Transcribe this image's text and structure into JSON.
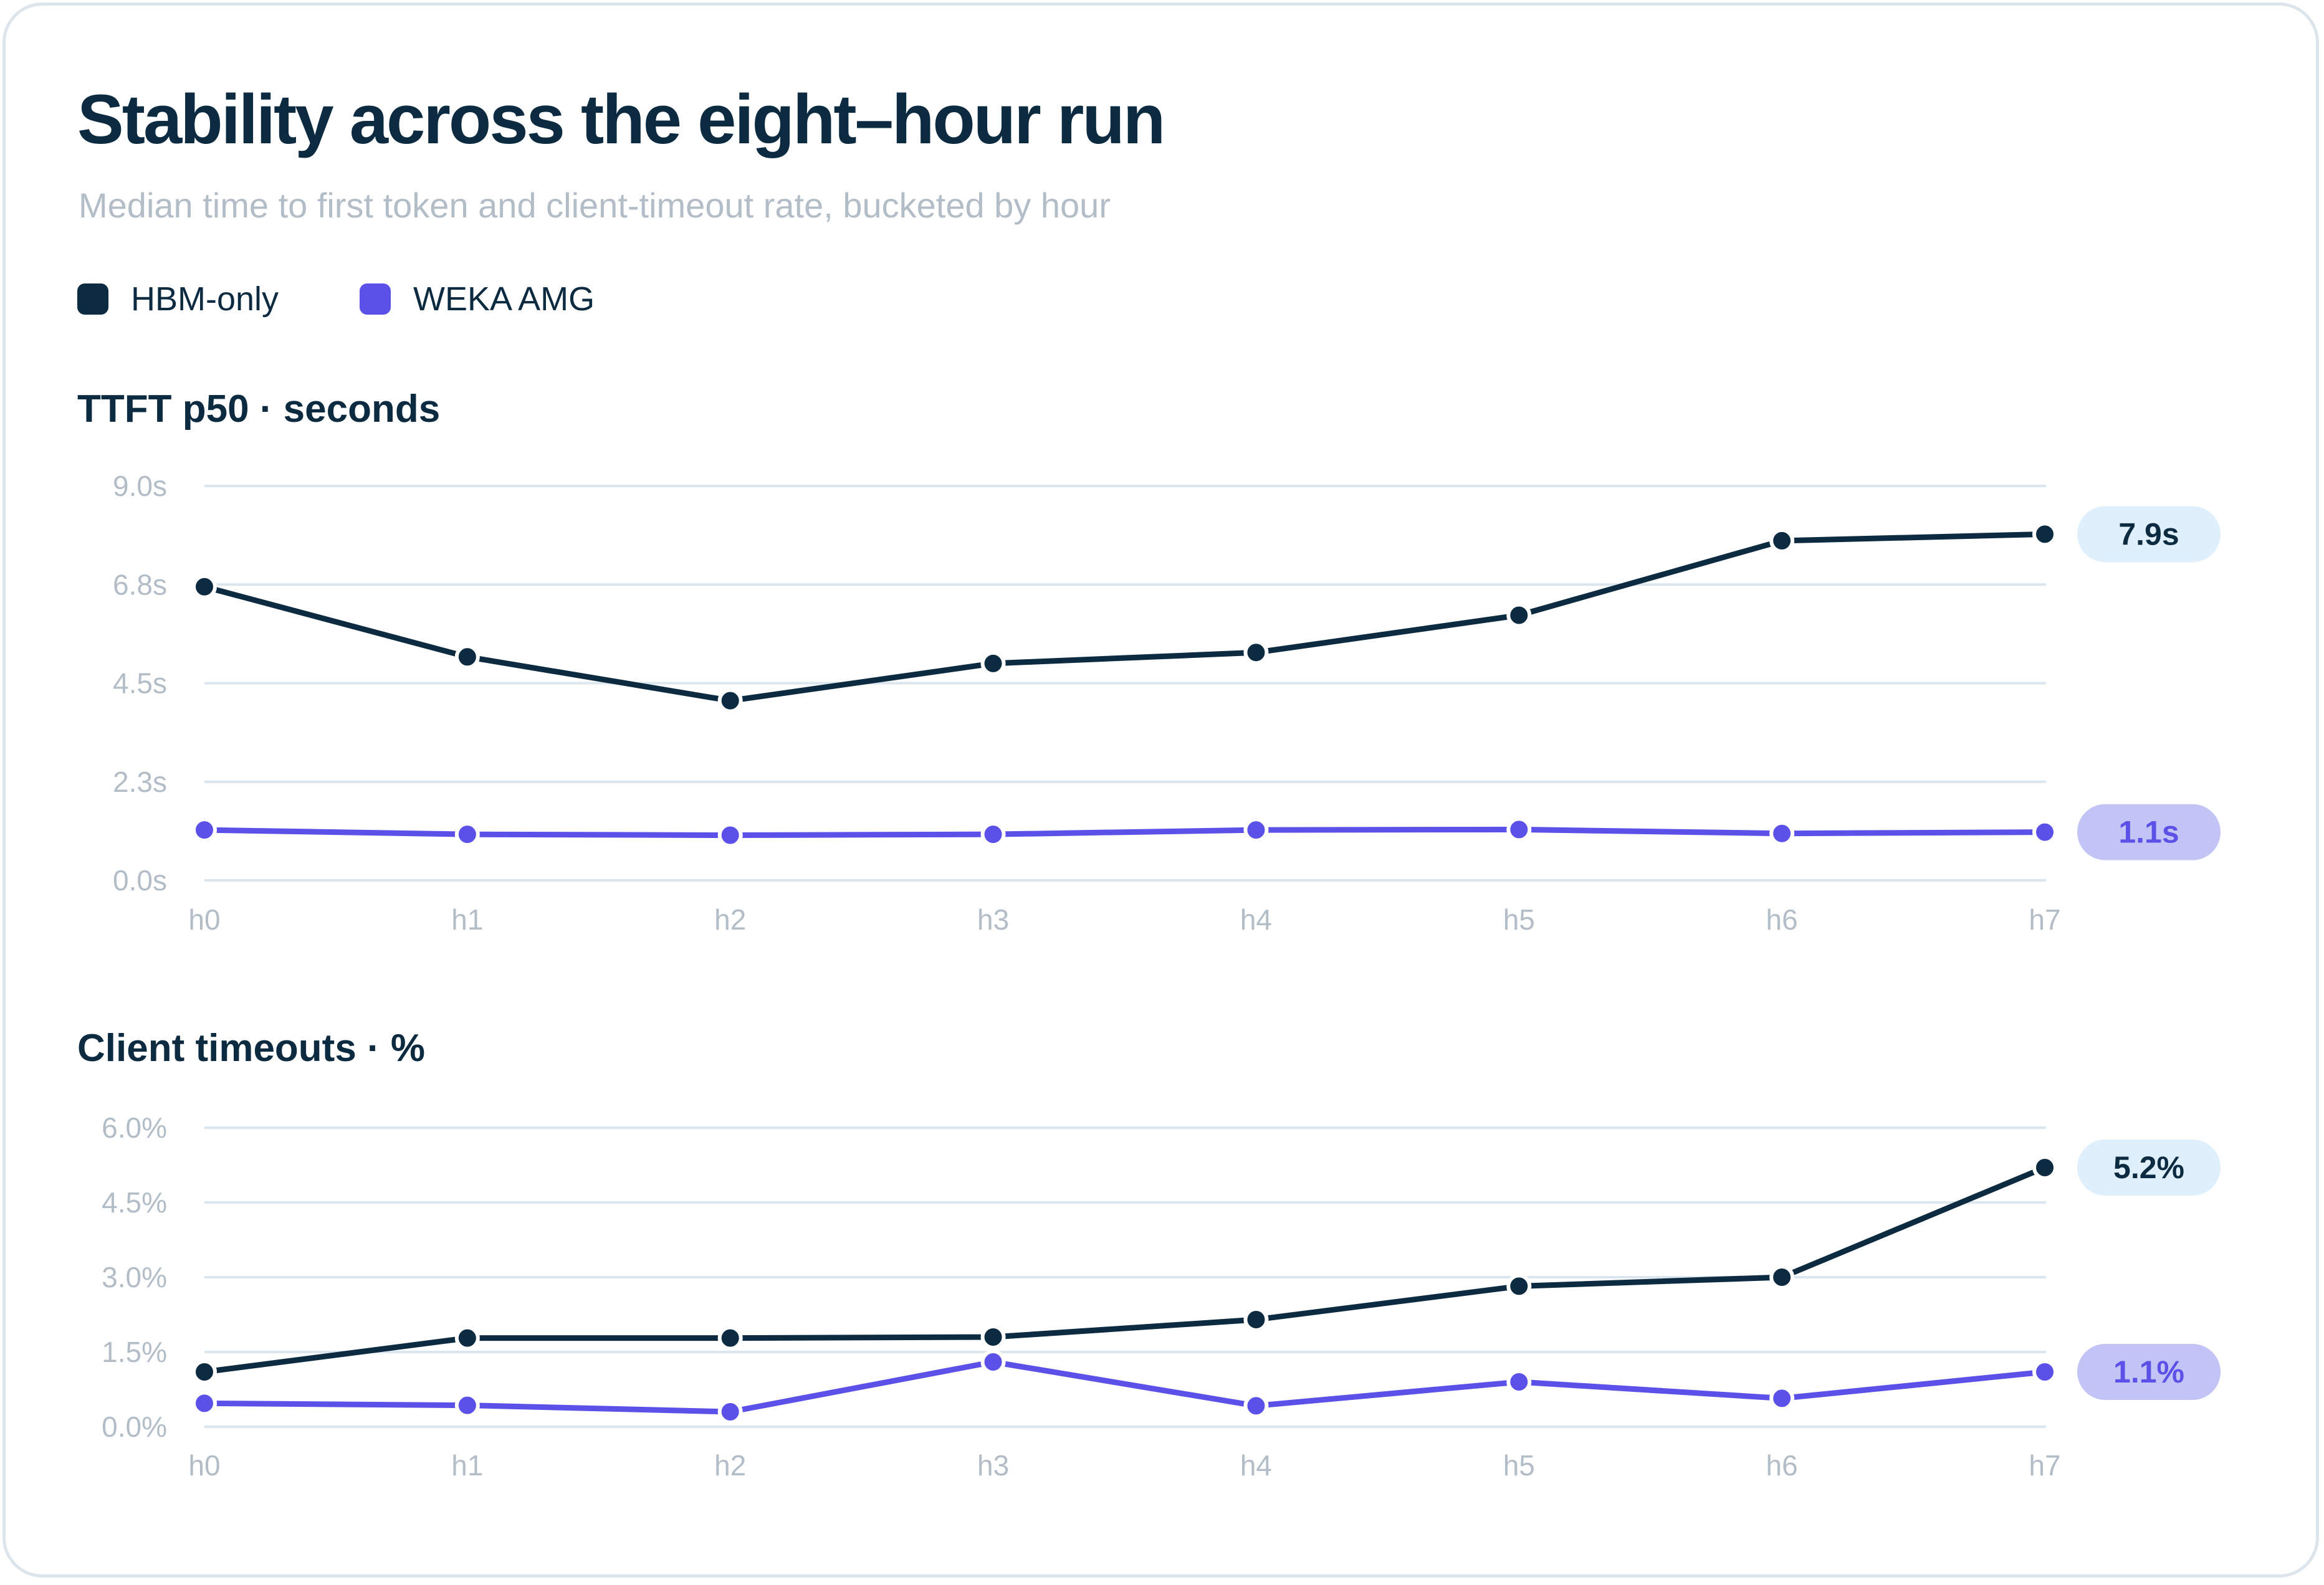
{
  "header": {
    "title": "Stability across the eight–hour run",
    "subtitle": "Median time to first token and client-timeout rate, bucketed by hour"
  },
  "legend": [
    {
      "label": "HBM-only",
      "color": "#0c2a40"
    },
    {
      "label": "WEKA AMG",
      "color": "#5b50e8"
    }
  ],
  "colors": {
    "hbm": "#0c2a40",
    "weka": "#5b50e8",
    "grid": "#dce6ee",
    "tick": "#b3bdc7",
    "hbm_badge_bg": "#dff0fc",
    "weka_badge_bg": "#c2c4f6"
  },
  "chart_data": [
    {
      "type": "line",
      "title": "TTFT p50 · seconds",
      "categories": [
        "h0",
        "h1",
        "h2",
        "h3",
        "h4",
        "h5",
        "h6",
        "h7"
      ],
      "ylim": [
        0,
        9.0
      ],
      "yticks": [
        0.0,
        2.25,
        4.5,
        6.75,
        9.0
      ],
      "ytick_labels": [
        "0.0s",
        "2.3s",
        "4.5s",
        "6.8s",
        "9.0s"
      ],
      "grid": true,
      "series": [
        {
          "name": "HBM-only",
          "values": [
            6.7,
            5.1,
            4.1,
            4.95,
            5.2,
            6.05,
            7.75,
            7.9
          ],
          "end_label": "7.9s"
        },
        {
          "name": "WEKA AMG",
          "values": [
            1.15,
            1.05,
            1.03,
            1.05,
            1.15,
            1.16,
            1.07,
            1.1
          ],
          "end_label": "1.1s"
        }
      ]
    },
    {
      "type": "line",
      "title": "Client timeouts · %",
      "categories": [
        "h0",
        "h1",
        "h2",
        "h3",
        "h4",
        "h5",
        "h6",
        "h7"
      ],
      "ylim": [
        0,
        6.0
      ],
      "yticks": [
        0.0,
        1.5,
        3.0,
        4.5,
        6.0
      ],
      "ytick_labels": [
        "0.0%",
        "1.5%",
        "3.0%",
        "4.5%",
        "6.0%"
      ],
      "grid": true,
      "series": [
        {
          "name": "HBM-only",
          "values": [
            1.1,
            1.78,
            1.78,
            1.8,
            2.15,
            2.82,
            3.0,
            5.2
          ],
          "end_label": "5.2%"
        },
        {
          "name": "WEKA AMG",
          "values": [
            0.47,
            0.43,
            0.3,
            1.3,
            0.42,
            0.9,
            0.57,
            1.1
          ],
          "end_label": "1.1%"
        }
      ]
    }
  ]
}
